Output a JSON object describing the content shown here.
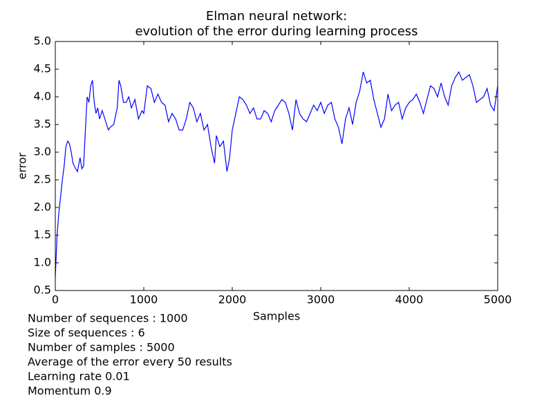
{
  "chart_data": {
    "type": "line",
    "title": [
      "Elman neural network:",
      "evolution of the error during learning process"
    ],
    "x_label": "Samples",
    "y_label": "error",
    "x": [
      0,
      20,
      40,
      60,
      80,
      100,
      120,
      140,
      160,
      180,
      200,
      230,
      250,
      280,
      300,
      320,
      340,
      360,
      380,
      400,
      420,
      440,
      460,
      480,
      500,
      530,
      560,
      580,
      600,
      620,
      660,
      700,
      720,
      740,
      770,
      800,
      830,
      860,
      900,
      940,
      980,
      1000,
      1040,
      1080,
      1120,
      1160,
      1200,
      1240,
      1280,
      1320,
      1360,
      1400,
      1440,
      1480,
      1520,
      1560,
      1600,
      1640,
      1680,
      1720,
      1760,
      1800,
      1820,
      1860,
      1900,
      1940,
      1970,
      2000,
      2040,
      2080,
      2120,
      2160,
      2200,
      2240,
      2280,
      2320,
      2360,
      2400,
      2440,
      2480,
      2520,
      2560,
      2600,
      2640,
      2680,
      2720,
      2760,
      2800,
      2840,
      2880,
      2920,
      2960,
      3000,
      3040,
      3080,
      3120,
      3160,
      3200,
      3240,
      3280,
      3320,
      3360,
      3400,
      3440,
      3480,
      3520,
      3560,
      3600,
      3640,
      3680,
      3720,
      3760,
      3800,
      3840,
      3880,
      3920,
      3960,
      4000,
      4040,
      4080,
      4120,
      4160,
      4200,
      4240,
      4280,
      4320,
      4360,
      4400,
      4440,
      4480,
      4520,
      4560,
      4600,
      4640,
      4680,
      4720,
      4760,
      4800,
      4840,
      4880,
      4920,
      4960,
      5000
    ],
    "series": [
      {
        "color": "#0000ff",
        "values": [
          0.75,
          1.5,
          1.9,
          2.2,
          2.5,
          2.75,
          3.1,
          3.2,
          3.15,
          3.0,
          2.8,
          2.7,
          2.65,
          2.9,
          2.7,
          2.75,
          3.4,
          4.0,
          3.9,
          4.2,
          4.3,
          3.9,
          3.7,
          3.8,
          3.6,
          3.75,
          3.6,
          3.5,
          3.4,
          3.45,
          3.5,
          3.8,
          4.3,
          4.2,
          3.9,
          3.9,
          4.0,
          3.8,
          3.95,
          3.6,
          3.75,
          3.7,
          4.2,
          4.15,
          3.9,
          4.05,
          3.9,
          3.85,
          3.55,
          3.7,
          3.6,
          3.4,
          3.4,
          3.6,
          3.9,
          3.8,
          3.55,
          3.7,
          3.4,
          3.5,
          3.1,
          2.8,
          3.3,
          3.1,
          3.2,
          2.65,
          2.9,
          3.4,
          3.7,
          4.0,
          3.95,
          3.85,
          3.7,
          3.8,
          3.6,
          3.6,
          3.75,
          3.7,
          3.55,
          3.75,
          3.85,
          3.95,
          3.9,
          3.7,
          3.4,
          3.95,
          3.7,
          3.6,
          3.55,
          3.7,
          3.85,
          3.75,
          3.9,
          3.7,
          3.85,
          3.9,
          3.6,
          3.45,
          3.15,
          3.6,
          3.8,
          3.5,
          3.9,
          4.1,
          4.45,
          4.25,
          4.3,
          3.95,
          3.7,
          3.45,
          3.6,
          4.05,
          3.75,
          3.85,
          3.9,
          3.6,
          3.8,
          3.9,
          3.95,
          4.05,
          3.9,
          3.7,
          3.95,
          4.2,
          4.15,
          4.0,
          4.25,
          4.0,
          3.85,
          4.2,
          4.35,
          4.45,
          4.3,
          4.35,
          4.4,
          4.2,
          3.9,
          3.95,
          4.0,
          4.15,
          3.85,
          3.75,
          4.2
        ]
      }
    ],
    "xlim": [
      0,
      5000
    ],
    "xticks": [
      0,
      1000,
      2000,
      3000,
      4000,
      5000
    ],
    "ylim": [
      0.5,
      5.0
    ],
    "yticks": [
      0.5,
      {
        "value": 1.0,
        "label": "1.0"
      },
      1.5,
      {
        "value": 2.0,
        "label": "2.0"
      },
      2.5,
      {
        "value": 3.0,
        "label": "3.0"
      },
      3.5,
      {
        "value": 4.0,
        "label": "4.0"
      },
      4.5,
      {
        "value": 5.0,
        "label": "5.0"
      }
    ],
    "annotations": [
      "Number of sequences : 1000",
      "Size of sequences : 6",
      "Number of samples : 5000",
      "Average of the error every 50 results",
      "Learning rate 0.01",
      "Momentum 0.9"
    ]
  }
}
